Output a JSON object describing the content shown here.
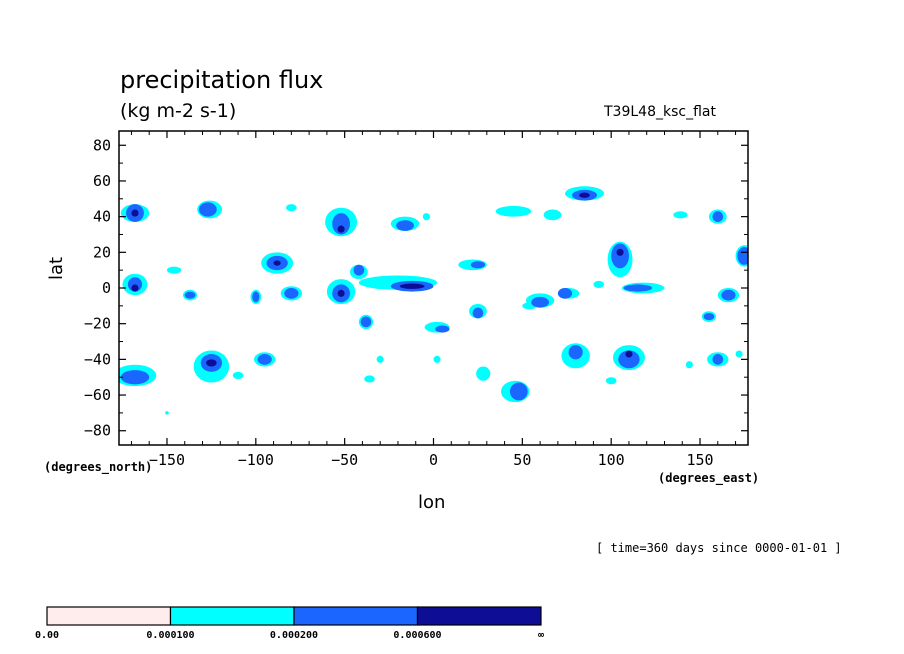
{
  "chart_data": {
    "type": "heatmap",
    "title": "precipitation flux",
    "units": "(kg m-2 s-1)",
    "run_label": "T39L48_ksc_flat",
    "xlabel": "lon",
    "ylabel": "lat",
    "x_units_label": "(degrees_east)",
    "y_units_label": "(degrees_north)",
    "time_label": "[ time=360 days since 0000-01-01 ]",
    "xlim": [
      -177,
      177
    ],
    "ylim": [
      -88,
      88
    ],
    "x_ticks": [
      -150,
      -100,
      -50,
      0,
      50,
      100,
      150
    ],
    "x_tick_labels": [
      "−150",
      "−100",
      "−50",
      "0",
      "50",
      "100",
      "150"
    ],
    "y_ticks": [
      80,
      60,
      40,
      20,
      0,
      -20,
      -40,
      -60,
      -80
    ],
    "y_tick_labels": [
      "80",
      "60",
      "40",
      "20",
      "0",
      "−20",
      "−40",
      "−60",
      "−80"
    ],
    "grid": false,
    "legend_position": "bottom-left",
    "levels": [
      {
        "range": "0.00 – 0.000100",
        "color": "#ffecec"
      },
      {
        "range": "0.000100 – 0.000200",
        "color": "#00ffff"
      },
      {
        "range": "0.000200 – 0.000600",
        "color": "#1a66ff"
      },
      {
        "range": "0.000600 – ∞",
        "color": "#0d0d96"
      }
    ],
    "colorbar_labels": [
      "0.00",
      "0.000100",
      "0.000200",
      "0.000600",
      "∞"
    ],
    "regions": [
      {
        "lon": -168,
        "lat": 42,
        "rx": 5,
        "ry": 5,
        "level": 3
      },
      {
        "lon": -127,
        "lat": 44,
        "rx": 5,
        "ry": 4,
        "level": 3
      },
      {
        "lon": -88,
        "lat": 14,
        "rx": 6,
        "ry": 4,
        "level": 3
      },
      {
        "lon": -52,
        "lat": 36,
        "rx": 5,
        "ry": 6,
        "level": 3
      },
      {
        "lon": -16,
        "lat": 35,
        "rx": 5,
        "ry": 3,
        "level": 3
      },
      {
        "lon": -168,
        "lat": 2,
        "rx": 4,
        "ry": 4,
        "level": 3
      },
      {
        "lon": -52,
        "lat": -3,
        "rx": 5,
        "ry": 5,
        "level": 3
      },
      {
        "lon": -12,
        "lat": 1,
        "rx": 12,
        "ry": 3,
        "level": 3
      },
      {
        "lon": 105,
        "lat": 18,
        "rx": 5,
        "ry": 7,
        "level": 3
      },
      {
        "lon": 175,
        "lat": 18,
        "rx": 4,
        "ry": 5,
        "level": 3
      },
      {
        "lon": -168,
        "lat": -50,
        "rx": 8,
        "ry": 4,
        "level": 3
      },
      {
        "lon": -125,
        "lat": -42,
        "rx": 6,
        "ry": 5,
        "level": 3
      },
      {
        "lon": 110,
        "lat": -40,
        "rx": 6,
        "ry": 5,
        "level": 3
      },
      {
        "lon": 85,
        "lat": 52,
        "rx": 7,
        "ry": 3,
        "level": 3
      },
      {
        "lon": 60,
        "lat": -8,
        "rx": 5,
        "ry": 3,
        "level": 3
      },
      {
        "lon": 25,
        "lat": -14,
        "rx": 3,
        "ry": 3,
        "level": 3
      },
      {
        "lon": 5,
        "lat": -23,
        "rx": 4,
        "ry": 2,
        "level": 3
      },
      {
        "lon": 48,
        "lat": -58,
        "rx": 5,
        "ry": 5,
        "level": 3
      },
      {
        "lon": 160,
        "lat": 40,
        "rx": 3,
        "ry": 3,
        "level": 3
      },
      {
        "lon": 166,
        "lat": -4,
        "rx": 4,
        "ry": 3,
        "level": 3
      },
      {
        "lon": -95,
        "lat": -40,
        "rx": 4,
        "ry": 3,
        "level": 3
      },
      {
        "lon": 80,
        "lat": -36,
        "rx": 4,
        "ry": 4,
        "level": 3
      },
      {
        "lon": 74,
        "lat": -3,
        "rx": 4,
        "ry": 3,
        "level": 3
      },
      {
        "lon": -38,
        "lat": -19,
        "rx": 3,
        "ry": 3,
        "level": 3
      },
      {
        "lon": -42,
        "lat": 10,
        "rx": 3,
        "ry": 3,
        "level": 3
      },
      {
        "lon": -80,
        "lat": -3,
        "rx": 4,
        "ry": 3,
        "level": 3
      },
      {
        "lon": 115,
        "lat": 0,
        "rx": 8,
        "ry": 2,
        "level": 3
      },
      {
        "lon": -137,
        "lat": -4,
        "rx": 3,
        "ry": 2,
        "level": 3
      },
      {
        "lon": 160,
        "lat": -40,
        "rx": 3,
        "ry": 3,
        "level": 3
      },
      {
        "lon": -100,
        "lat": -5,
        "rx": 2,
        "ry": 3,
        "level": 3
      },
      {
        "lon": 25,
        "lat": 13,
        "rx": 4,
        "ry": 2,
        "level": 3
      },
      {
        "lon": 155,
        "lat": -16,
        "rx": 3,
        "ry": 2,
        "level": 3
      },
      {
        "lon": -168,
        "lat": 42,
        "rx": 2,
        "ry": 2,
        "level": 4
      },
      {
        "lon": -52,
        "lat": 33,
        "rx": 2,
        "ry": 2,
        "level": 4
      },
      {
        "lon": -12,
        "lat": 1,
        "rx": 7,
        "ry": 1.5,
        "level": 4
      },
      {
        "lon": 105,
        "lat": 20,
        "rx": 2,
        "ry": 2,
        "level": 4
      },
      {
        "lon": -52,
        "lat": -3,
        "rx": 2,
        "ry": 2,
        "level": 4
      },
      {
        "lon": -125,
        "lat": -42,
        "rx": 3,
        "ry": 2,
        "level": 4
      },
      {
        "lon": 85,
        "lat": 52,
        "rx": 3,
        "ry": 1.5,
        "level": 4
      },
      {
        "lon": 110,
        "lat": -37,
        "rx": 2,
        "ry": 2,
        "level": 4
      },
      {
        "lon": -168,
        "lat": 0,
        "rx": 2,
        "ry": 2,
        "level": 4
      },
      {
        "lon": -88,
        "lat": 14,
        "rx": 2,
        "ry": 1.5,
        "level": 4
      }
    ],
    "light_regions": [
      {
        "lon": -168,
        "lat": 42,
        "rx": 8,
        "ry": 5
      },
      {
        "lon": -126,
        "lat": 44,
        "rx": 7,
        "ry": 5
      },
      {
        "lon": -88,
        "lat": 14,
        "rx": 9,
        "ry": 6
      },
      {
        "lon": -52,
        "lat": 37,
        "rx": 9,
        "ry": 8
      },
      {
        "lon": -16,
        "lat": 36,
        "rx": 8,
        "ry": 4
      },
      {
        "lon": -168,
        "lat": 2,
        "rx": 7,
        "ry": 6
      },
      {
        "lon": -52,
        "lat": -2,
        "rx": 8,
        "ry": 7
      },
      {
        "lon": -20,
        "lat": 3,
        "rx": 22,
        "ry": 4
      },
      {
        "lon": 105,
        "lat": 16,
        "rx": 7,
        "ry": 10
      },
      {
        "lon": 175,
        "lat": 18,
        "rx": 5,
        "ry": 6
      },
      {
        "lon": -168,
        "lat": -49,
        "rx": 12,
        "ry": 6
      },
      {
        "lon": -125,
        "lat": -44,
        "rx": 10,
        "ry": 9
      },
      {
        "lon": 110,
        "lat": -39,
        "rx": 9,
        "ry": 7
      },
      {
        "lon": 85,
        "lat": 53,
        "rx": 11,
        "ry": 4
      },
      {
        "lon": 60,
        "lat": -7,
        "rx": 8,
        "ry": 4
      },
      {
        "lon": 25,
        "lat": -13,
        "rx": 5,
        "ry": 4
      },
      {
        "lon": 2,
        "lat": -22,
        "rx": 7,
        "ry": 3
      },
      {
        "lon": 46,
        "lat": -58,
        "rx": 8,
        "ry": 6
      },
      {
        "lon": 160,
        "lat": 40,
        "rx": 5,
        "ry": 4
      },
      {
        "lon": 166,
        "lat": -4,
        "rx": 6,
        "ry": 4
      },
      {
        "lon": -95,
        "lat": -40,
        "rx": 6,
        "ry": 4
      },
      {
        "lon": 80,
        "lat": -38,
        "rx": 8,
        "ry": 7
      },
      {
        "lon": 76,
        "lat": -3,
        "rx": 6,
        "ry": 3
      },
      {
        "lon": -38,
        "lat": -19,
        "rx": 4,
        "ry": 4
      },
      {
        "lon": -42,
        "lat": 9,
        "rx": 5,
        "ry": 4
      },
      {
        "lon": -80,
        "lat": -3,
        "rx": 6,
        "ry": 4
      },
      {
        "lon": 118,
        "lat": 0,
        "rx": 12,
        "ry": 3
      },
      {
        "lon": -137,
        "lat": -4,
        "rx": 4,
        "ry": 3
      },
      {
        "lon": 160,
        "lat": -40,
        "rx": 6,
        "ry": 4
      },
      {
        "lon": -100,
        "lat": -5,
        "rx": 3,
        "ry": 4
      },
      {
        "lon": 22,
        "lat": 13,
        "rx": 8,
        "ry": 3
      },
      {
        "lon": 155,
        "lat": -16,
        "rx": 4,
        "ry": 3
      },
      {
        "lon": 45,
        "lat": 43,
        "rx": 10,
        "ry": 3
      },
      {
        "lon": 67,
        "lat": 41,
        "rx": 5,
        "ry": 3
      },
      {
        "lon": 28,
        "lat": -48,
        "rx": 4,
        "ry": 4
      },
      {
        "lon": -146,
        "lat": 10,
        "rx": 4,
        "ry": 2
      },
      {
        "lon": -80,
        "lat": 45,
        "rx": 3,
        "ry": 2
      },
      {
        "lon": -150,
        "lat": -70,
        "rx": 1,
        "ry": 1
      },
      {
        "lon": -36,
        "lat": -51,
        "rx": 3,
        "ry": 2
      },
      {
        "lon": 100,
        "lat": -52,
        "rx": 3,
        "ry": 2
      },
      {
        "lon": 139,
        "lat": 41,
        "rx": 4,
        "ry": 2
      },
      {
        "lon": -110,
        "lat": -49,
        "rx": 3,
        "ry": 2
      },
      {
        "lon": 54,
        "lat": -10,
        "rx": 4,
        "ry": 2
      },
      {
        "lon": 93,
        "lat": 2,
        "rx": 3,
        "ry": 2
      },
      {
        "lon": -4,
        "lat": 40,
        "rx": 2,
        "ry": 2
      },
      {
        "lon": 2,
        "lat": -40,
        "rx": 2,
        "ry": 2
      },
      {
        "lon": -30,
        "lat": -40,
        "rx": 2,
        "ry": 2
      },
      {
        "lon": 144,
        "lat": -43,
        "rx": 2,
        "ry": 2
      },
      {
        "lon": 172,
        "lat": -37,
        "rx": 2,
        "ry": 2
      }
    ]
  }
}
